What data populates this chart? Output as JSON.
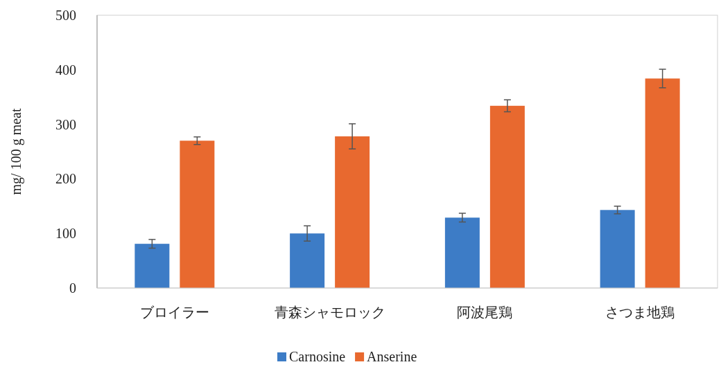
{
  "chart_data": {
    "type": "bar",
    "ylabel": "mg/ 100 g meat",
    "categories": [
      "ブロイラー",
      "青森シャモロック",
      "阿波尾鶏",
      "さつま地鶏"
    ],
    "series": [
      {
        "name": "Carnosine",
        "color": "#3d7cc6",
        "values": [
          81,
          100,
          129,
          143
        ],
        "errors": [
          8,
          14,
          8,
          7
        ]
      },
      {
        "name": "Anserine",
        "color": "#e8692f",
        "values": [
          270,
          278,
          334,
          384
        ],
        "errors": [
          7,
          23,
          11,
          17
        ]
      }
    ],
    "ylim": [
      0,
      500
    ],
    "yticks": [
      0,
      100,
      200,
      300,
      400,
      500
    ],
    "grid": false,
    "legend": "bottom"
  }
}
